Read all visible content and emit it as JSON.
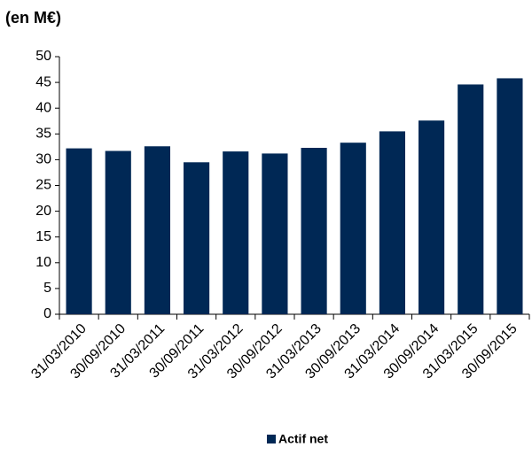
{
  "chart_data": {
    "type": "bar",
    "title": "(en M€)",
    "categories": [
      "31/03/2010",
      "30/09/2010",
      "31/03/2011",
      "30/09/2011",
      "31/03/2012",
      "30/09/2012",
      "31/03/2013",
      "30/09/2013",
      "31/03/2014",
      "30/09/2014",
      "31/03/2015",
      "30/09/2015"
    ],
    "series": [
      {
        "name": "Actif net",
        "color": "#002855",
        "values": [
          32.2,
          31.7,
          32.6,
          29.5,
          31.6,
          31.2,
          32.3,
          33.3,
          35.5,
          37.6,
          44.6,
          45.8
        ]
      }
    ],
    "ylim": [
      0,
      50
    ],
    "yticks": [
      0,
      5,
      10,
      15,
      20,
      25,
      30,
      35,
      40,
      45,
      50
    ],
    "grid": false,
    "legend": "bottom"
  }
}
